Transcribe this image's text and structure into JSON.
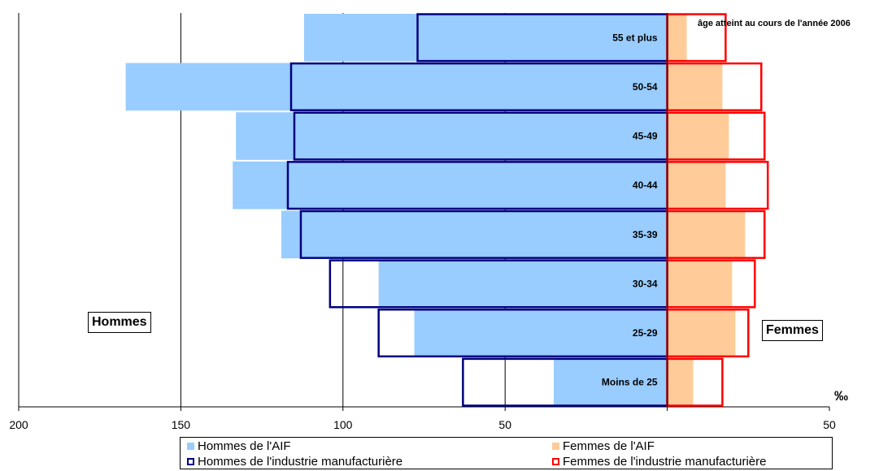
{
  "chart_data": {
    "type": "bar",
    "orientation": "horizontal-population-pyramid",
    "categories": [
      "Moins de 25",
      "25-29",
      "30-34",
      "35-39",
      "40-44",
      "45-49",
      "50-54",
      "55 et plus"
    ],
    "series": [
      {
        "name": "Hommes de l'AIF",
        "side": "left",
        "style": "filled",
        "color": "#99ccff",
        "values": [
          35,
          78,
          89,
          119,
          134,
          133,
          167,
          112
        ]
      },
      {
        "name": "Femmes de l'AIF",
        "side": "right",
        "style": "filled",
        "color": "#ffcc99",
        "values": [
          8,
          21,
          20,
          24,
          18,
          19,
          17,
          6
        ]
      },
      {
        "name": "Hommes de l'industrie manufacturière",
        "side": "left",
        "style": "outline",
        "color": "#000080",
        "values": [
          63,
          89,
          104,
          113,
          117,
          115,
          116,
          77
        ]
      },
      {
        "name": "Femmes de l'industrie manufacturière",
        "side": "right",
        "style": "outline",
        "color": "#ff0000",
        "values": [
          17,
          25,
          27,
          30,
          31,
          30,
          29,
          18
        ]
      }
    ],
    "x_ticks": [
      {
        "value": -200,
        "label": "200"
      },
      {
        "value": -150,
        "label": "150"
      },
      {
        "value": -100,
        "label": "100"
      },
      {
        "value": -50,
        "label": "50"
      },
      {
        "value": 50,
        "label": "50"
      }
    ],
    "xlim": [
      -200,
      50
    ],
    "grid": "vertical",
    "legend_position": "bottom",
    "unit": "‰",
    "annotation": "âge atteint au cours de l'année 2006",
    "left_label": "Hommes",
    "right_label": "Femmes"
  }
}
